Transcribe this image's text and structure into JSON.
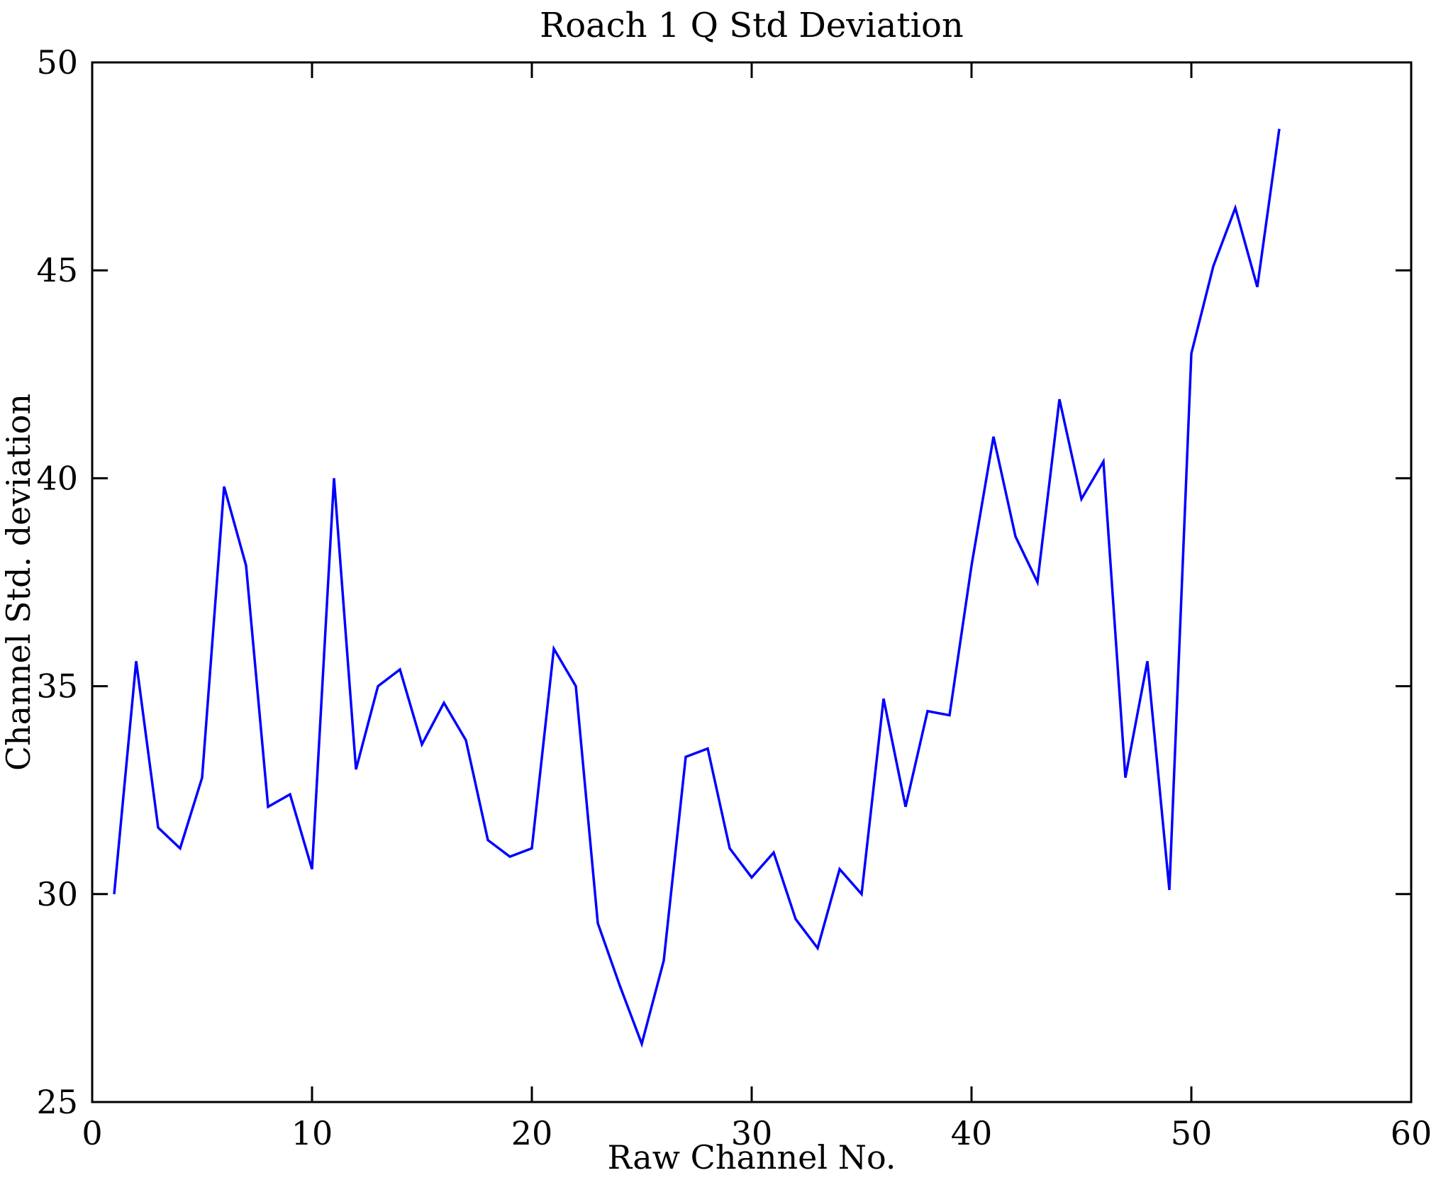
{
  "chart_data": {
    "type": "line",
    "title": "Roach 1 Q Std Deviation",
    "xlabel": "Raw Channel No.",
    "ylabel": "Channel Std. deviation",
    "xlim": [
      0,
      60
    ],
    "ylim": [
      25,
      50
    ],
    "xticks": [
      0,
      10,
      20,
      30,
      40,
      50,
      60
    ],
    "yticks": [
      25,
      30,
      35,
      40,
      45,
      50
    ],
    "grid": false,
    "legend": null,
    "line_color": "#0000FF",
    "axis_color": "#000000",
    "background_color": "#FFFFFF",
    "x": [
      1,
      2,
      3,
      4,
      5,
      6,
      7,
      8,
      9,
      10,
      11,
      12,
      13,
      14,
      15,
      16,
      17,
      18,
      19,
      20,
      21,
      22,
      23,
      24,
      25,
      26,
      27,
      28,
      29,
      30,
      31,
      32,
      33,
      34,
      35,
      36,
      37,
      38,
      39,
      40,
      41,
      42,
      43,
      44,
      45,
      46,
      47,
      48,
      49,
      50,
      51,
      52,
      53,
      54
    ],
    "values": [
      30.0,
      35.6,
      31.6,
      31.1,
      32.8,
      39.8,
      37.9,
      32.1,
      32.4,
      30.6,
      40.0,
      33.0,
      35.0,
      35.4,
      33.6,
      34.6,
      33.7,
      31.3,
      30.9,
      31.1,
      35.9,
      35.0,
      29.3,
      27.8,
      26.4,
      28.4,
      33.3,
      33.5,
      31.1,
      30.4,
      31.0,
      29.4,
      28.7,
      30.6,
      30.0,
      34.7,
      32.1,
      34.4,
      34.3,
      37.9,
      41.0,
      38.6,
      37.5,
      41.9,
      39.5,
      40.4,
      32.8,
      35.6,
      30.1,
      43.0,
      45.1,
      46.5,
      44.6,
      48.4
    ]
  }
}
